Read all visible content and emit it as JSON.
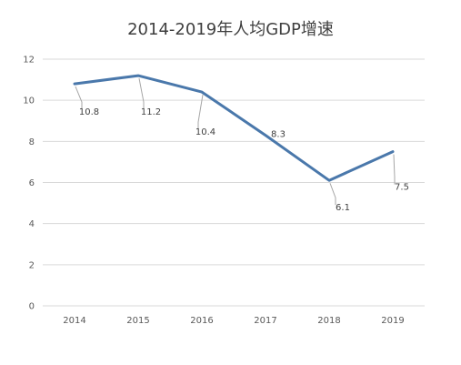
{
  "chart_data": {
    "type": "line",
    "title": "2014-2019年人均GDP增速",
    "categories": [
      "2014",
      "2015",
      "2016",
      "2017",
      "2018",
      "2019"
    ],
    "series": [
      {
        "values": [
          10.8,
          11.2,
          10.4,
          8.3,
          6.1,
          7.5
        ]
      }
    ],
    "data_labels": [
      "10.8",
      "11.2",
      "10.4",
      "8.3",
      "6.1",
      "7.5"
    ],
    "ylim": [
      0,
      12
    ],
    "yticks": [
      0,
      2,
      4,
      6,
      8,
      10,
      12
    ],
    "grid": true,
    "legend": "none",
    "colors": {
      "line": "#4a78ab",
      "grid": "#d9d9d9",
      "leader": "#a6a6a6"
    }
  }
}
